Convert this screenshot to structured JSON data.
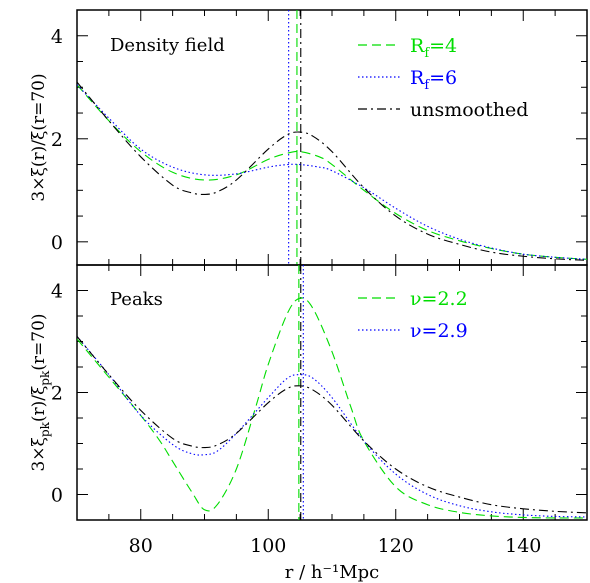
{
  "chart_data": [
    {
      "type": "line",
      "panel_label": "Density field",
      "ylabel": "3×ξ(r)/ξ(r=70)",
      "xlim": [
        70,
        150
      ],
      "ylim": [
        -0.45,
        4.5
      ],
      "yticks": [
        0,
        2,
        4
      ],
      "xticks": [
        80,
        100,
        120,
        140
      ],
      "legend_placement": "top-right",
      "vertical_lines": [
        {
          "x": 103.2,
          "color": "#0000ff",
          "style": "dotted"
        },
        {
          "x": 104.5,
          "color": "#00dd00",
          "style": "dashed"
        },
        {
          "x": 105.1,
          "color": "#000000",
          "style": "dashdot"
        }
      ],
      "series": [
        {
          "name": "R_f=4",
          "name_main": "R",
          "name_sub": "f",
          "name_rest": "=4",
          "color": "#00dd00",
          "style": "dashed",
          "x": [
            70,
            75,
            80,
            85,
            90,
            95,
            100,
            103,
            105,
            108,
            110,
            115,
            120,
            125,
            130,
            135,
            140,
            145,
            150
          ],
          "y": [
            3.05,
            2.35,
            1.75,
            1.35,
            1.2,
            1.3,
            1.6,
            1.72,
            1.75,
            1.65,
            1.5,
            1.0,
            0.55,
            0.22,
            0.02,
            -0.13,
            -0.24,
            -0.3,
            -0.34
          ]
        },
        {
          "name": "R_f=6",
          "name_main": "R",
          "name_sub": "f",
          "name_rest": "=6",
          "color": "#0000ff",
          "style": "dotted",
          "x": [
            70,
            75,
            80,
            85,
            90,
            95,
            100,
            103,
            105,
            108,
            110,
            115,
            120,
            125,
            130,
            135,
            140,
            145,
            150
          ],
          "y": [
            3.05,
            2.4,
            1.8,
            1.45,
            1.3,
            1.32,
            1.45,
            1.5,
            1.5,
            1.45,
            1.38,
            1.05,
            0.65,
            0.3,
            0.05,
            -0.12,
            -0.24,
            -0.3,
            -0.34
          ]
        },
        {
          "name": "unsmoothed",
          "color": "#000000",
          "style": "dashdot",
          "x": [
            70,
            75,
            80,
            85,
            88,
            90,
            92,
            95,
            100,
            103,
            105,
            107,
            110,
            115,
            120,
            125,
            130,
            135,
            140,
            145,
            150
          ],
          "y": [
            3.1,
            2.35,
            1.65,
            1.1,
            0.95,
            0.92,
            0.97,
            1.2,
            1.8,
            2.08,
            2.13,
            2.05,
            1.75,
            1.05,
            0.5,
            0.15,
            -0.05,
            -0.2,
            -0.28,
            -0.33,
            -0.36
          ]
        }
      ]
    },
    {
      "type": "line",
      "panel_label": "Peaks",
      "ylabel": "3×ξpk(r)/ξpk(r=70)",
      "ylabel_parts": [
        "3×ξ",
        "pk",
        "(r)/ξ",
        "pk",
        "(r=70)"
      ],
      "xlabel": "r / h⁻¹Mpc",
      "xlim": [
        70,
        150
      ],
      "ylim": [
        -0.5,
        4.5
      ],
      "yticks": [
        0,
        2,
        4
      ],
      "xticks": [
        80,
        100,
        120,
        140
      ],
      "legend_placement": "top-right",
      "vertical_lines": [
        {
          "x": 104.8,
          "color": "#00dd00",
          "style": "dashed"
        },
        {
          "x": 105.1,
          "color": "#000000",
          "style": "dashdot"
        },
        {
          "x": 105.5,
          "color": "#0000ff",
          "style": "dotted"
        }
      ],
      "series": [
        {
          "name": "ν=2.2",
          "color": "#00dd00",
          "style": "dashed",
          "x": [
            70,
            75,
            80,
            83,
            85,
            88,
            90,
            92,
            95,
            98,
            100,
            103,
            105,
            107,
            110,
            113,
            115,
            120,
            125,
            130,
            135,
            140,
            145,
            150
          ],
          "y": [
            3.05,
            2.3,
            1.55,
            1.05,
            0.65,
            0.05,
            -0.3,
            -0.2,
            0.5,
            1.7,
            2.55,
            3.55,
            3.85,
            3.65,
            2.8,
            1.7,
            1.05,
            0.15,
            -0.2,
            -0.35,
            -0.42,
            -0.45,
            -0.46,
            -0.46
          ]
        },
        {
          "name": "ν=2.9",
          "color": "#0000ff",
          "style": "dotted",
          "x": [
            70,
            75,
            80,
            85,
            88,
            90,
            92,
            95,
            100,
            103,
            105,
            107,
            110,
            115,
            120,
            125,
            130,
            135,
            140,
            145,
            150
          ],
          "y": [
            3.1,
            2.35,
            1.55,
            0.98,
            0.8,
            0.78,
            0.85,
            1.2,
            1.9,
            2.28,
            2.35,
            2.28,
            1.9,
            1.05,
            0.4,
            0.0,
            -0.22,
            -0.34,
            -0.4,
            -0.43,
            -0.44
          ]
        },
        {
          "name": "unsmoothed",
          "legend": false,
          "color": "#000000",
          "style": "dashdot",
          "x": [
            70,
            75,
            80,
            85,
            88,
            90,
            92,
            95,
            100,
            103,
            105,
            107,
            110,
            115,
            120,
            125,
            130,
            135,
            140,
            145,
            150
          ],
          "y": [
            3.1,
            2.35,
            1.65,
            1.1,
            0.95,
            0.92,
            0.97,
            1.2,
            1.8,
            2.08,
            2.13,
            2.05,
            1.75,
            1.05,
            0.5,
            0.15,
            -0.05,
            -0.2,
            -0.28,
            -0.33,
            -0.36
          ]
        }
      ]
    }
  ]
}
